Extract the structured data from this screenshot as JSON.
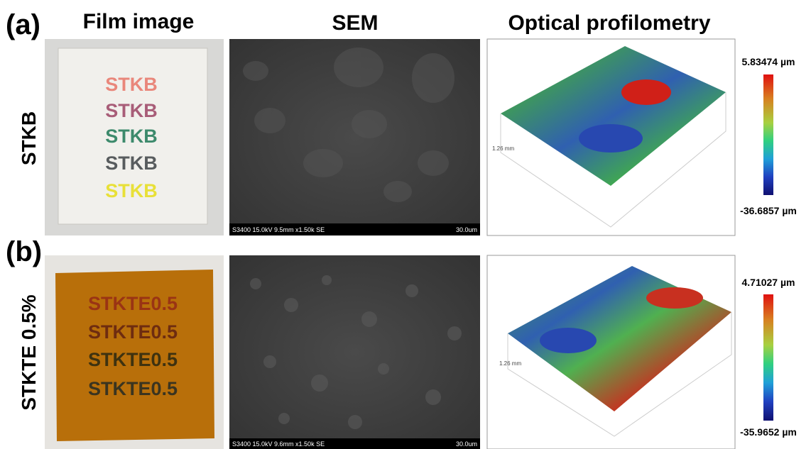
{
  "columns": [
    "Film image",
    "SEM",
    "Optical profilometry"
  ],
  "rows": [
    {
      "label": "(a)",
      "name": "STKB",
      "film_text": [
        "STKB",
        "STKB",
        "STKB",
        "STKB",
        "STKB"
      ],
      "sem_caption": "S3400 15.0kV 9.5mm x1.50k SE",
      "sem_scale": "30.0um",
      "profile_axis_label": "1.26 mm",
      "colorbar_max": "5.83474 µm",
      "colorbar_min": "-36.6857 µm"
    },
    {
      "label": "(b)",
      "name": "STKTE 0.5%",
      "film_text": [
        "STKTE0.5",
        "STKTE0.5",
        "STKTE0.5",
        "STKTE0.5"
      ],
      "sem_caption": "S3400 15.0kV 9.6mm x1.50k SE",
      "sem_scale": "30.0um",
      "profile_axis_label": "1.26 mm",
      "colorbar_max": "4.71027 µm",
      "colorbar_min": "-35.9652 µm"
    }
  ]
}
